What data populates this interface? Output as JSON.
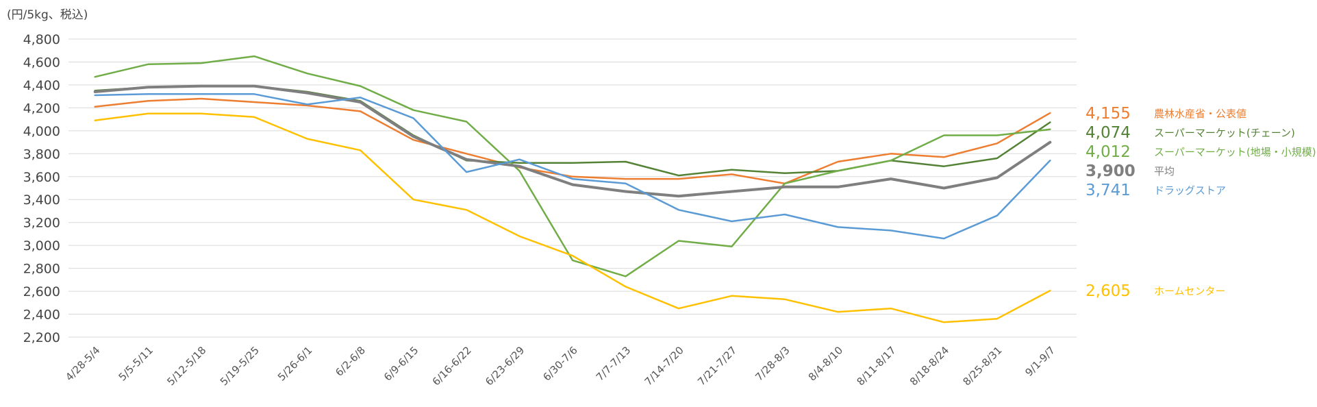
{
  "chart_data": {
    "type": "line",
    "ylabel": "(円/5kg、税込)",
    "ylim": [
      2200,
      4800
    ],
    "yticks": [
      2200,
      2400,
      2600,
      2800,
      3000,
      3200,
      3400,
      3600,
      3800,
      4000,
      4200,
      4400,
      4600,
      4800
    ],
    "ytick_labels": [
      "2,200",
      "2,400",
      "2,600",
      "2,800",
      "3,000",
      "3,200",
      "3,400",
      "3,600",
      "3,800",
      "4,000",
      "4,200",
      "4,400",
      "4,600",
      "4,800"
    ],
    "grid": true,
    "categories": [
      "4/28-5/4",
      "5/5-5/11",
      "5/12-5/18",
      "5/19-5/25",
      "5/26-6/1",
      "6/2-6/8",
      "6/9-6/15",
      "6/16-6/22",
      "6/23-6/29",
      "6/30-7/6",
      "7/7-7/13",
      "7/14-7/20",
      "7/21-7/27",
      "7/28-8/3",
      "8/4-8/10",
      "8/11-8/17",
      "8/18-8/24",
      "8/25-8/31",
      "9/1-9/7"
    ],
    "series": [
      {
        "name": "農林水産省・公表値",
        "color": "#ED7D31",
        "width": 2.5,
        "end_label": "4,155",
        "values": [
          4210,
          4260,
          4280,
          4250,
          4220,
          4170,
          3920,
          3800,
          3680,
          3600,
          3580,
          3580,
          3620,
          3540,
          3730,
          3800,
          3770,
          3890,
          4155
        ]
      },
      {
        "name": "スーパーマーケット(チェーン)",
        "color": "#548235",
        "width": 2.5,
        "end_label": "4,074",
        "values": [
          4350,
          4380,
          4390,
          4390,
          4340,
          4260,
          3960,
          3740,
          3720,
          3720,
          3730,
          3610,
          3660,
          3630,
          3650,
          3740,
          3690,
          3760,
          4074
        ]
      },
      {
        "name": "スーパーマーケット(地場・小規模)",
        "color": "#70AD47",
        "width": 2.5,
        "end_label": "4,012",
        "values": [
          4470,
          4580,
          4590,
          4650,
          4500,
          4390,
          4180,
          4080,
          3650,
          2870,
          2730,
          3040,
          2990,
          3540,
          3650,
          3740,
          3960,
          3960,
          4012
        ]
      },
      {
        "name": "平均",
        "color": "#7F7F7F",
        "width": 4,
        "end_label": "3,900",
        "values": [
          4340,
          4380,
          4390,
          4390,
          4330,
          4250,
          3950,
          3750,
          3690,
          3530,
          3470,
          3430,
          3470,
          3510,
          3510,
          3580,
          3500,
          3590,
          3900
        ]
      },
      {
        "name": "ドラッグストア",
        "color": "#5B9BD5",
        "width": 2.5,
        "end_label": "3,741",
        "values": [
          4310,
          4320,
          4320,
          4320,
          4230,
          4290,
          4110,
          3640,
          3750,
          3580,
          3540,
          3310,
          3210,
          3270,
          3160,
          3130,
          3060,
          3260,
          3741
        ]
      },
      {
        "name": "ホームセンター",
        "color": "#FFC000",
        "width": 2.5,
        "end_label": "2,605",
        "values": [
          4090,
          4150,
          4150,
          4120,
          3930,
          3830,
          3400,
          3310,
          3080,
          2910,
          2640,
          2450,
          2560,
          2530,
          2420,
          2450,
          2330,
          2360,
          2605
        ]
      }
    ]
  }
}
